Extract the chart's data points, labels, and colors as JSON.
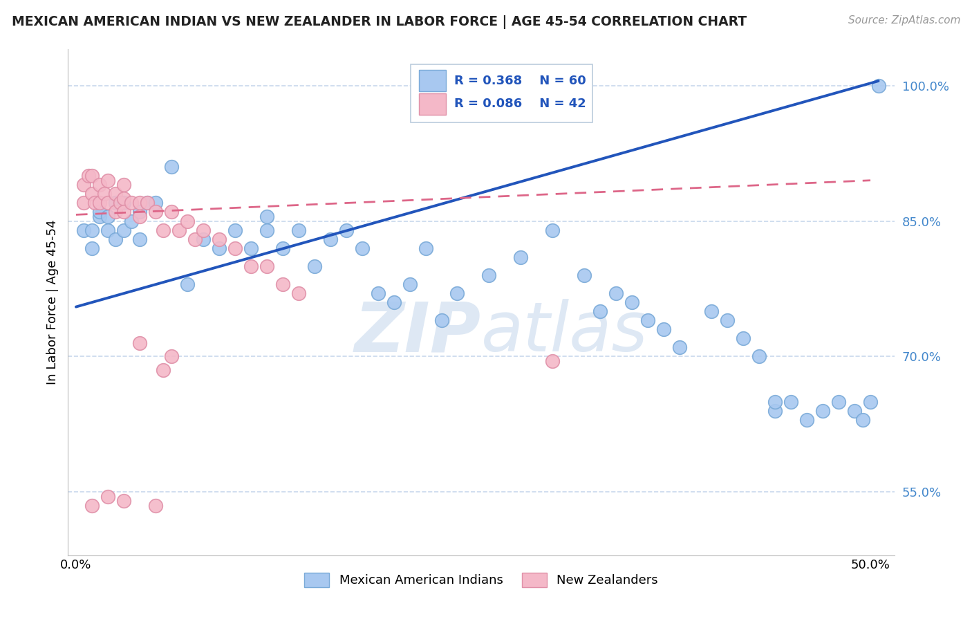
{
  "title": "MEXICAN AMERICAN INDIAN VS NEW ZEALANDER IN LABOR FORCE | AGE 45-54 CORRELATION CHART",
  "source": "Source: ZipAtlas.com",
  "ylabel": "In Labor Force | Age 45-54",
  "xlim": [
    -0.005,
    0.515
  ],
  "ylim": [
    0.48,
    1.04
  ],
  "xticks": [
    0.0,
    0.5
  ],
  "xticklabels": [
    "0.0%",
    "50.0%"
  ],
  "ytick_positions": [
    0.55,
    0.7,
    0.85,
    1.0
  ],
  "ytick_labels": [
    "55.0%",
    "70.0%",
    "85.0%",
    "100.0%"
  ],
  "blue_color": "#a8c8f0",
  "blue_edge_color": "#7aaad8",
  "pink_color": "#f4b8c8",
  "pink_edge_color": "#e090a8",
  "blue_line_color": "#2255bb",
  "pink_line_color": "#dd6688",
  "grid_color": "#c8d8ec",
  "watermark_color": "#d0dff0",
  "blue_scatter_x": [
    0.005,
    0.01,
    0.01,
    0.015,
    0.015,
    0.02,
    0.02,
    0.025,
    0.025,
    0.03,
    0.03,
    0.035,
    0.04,
    0.04,
    0.045,
    0.05,
    0.06,
    0.07,
    0.08,
    0.09,
    0.1,
    0.11,
    0.12,
    0.12,
    0.13,
    0.14,
    0.15,
    0.16,
    0.17,
    0.18,
    0.19,
    0.2,
    0.21,
    0.22,
    0.23,
    0.24,
    0.26,
    0.28,
    0.3,
    0.32,
    0.33,
    0.34,
    0.35,
    0.36,
    0.37,
    0.38,
    0.4,
    0.41,
    0.42,
    0.43,
    0.44,
    0.44,
    0.45,
    0.46,
    0.47,
    0.48,
    0.49,
    0.495,
    0.5,
    0.505
  ],
  "blue_scatter_y": [
    0.84,
    0.84,
    0.82,
    0.855,
    0.86,
    0.855,
    0.84,
    0.87,
    0.83,
    0.87,
    0.84,
    0.85,
    0.86,
    0.83,
    0.87,
    0.87,
    0.91,
    0.78,
    0.83,
    0.82,
    0.84,
    0.82,
    0.855,
    0.84,
    0.82,
    0.84,
    0.8,
    0.83,
    0.84,
    0.82,
    0.77,
    0.76,
    0.78,
    0.82,
    0.74,
    0.77,
    0.79,
    0.81,
    0.84,
    0.79,
    0.75,
    0.77,
    0.76,
    0.74,
    0.73,
    0.71,
    0.75,
    0.74,
    0.72,
    0.7,
    0.64,
    0.65,
    0.65,
    0.63,
    0.64,
    0.65,
    0.64,
    0.63,
    0.65,
    1.0
  ],
  "pink_scatter_x": [
    0.005,
    0.005,
    0.008,
    0.01,
    0.01,
    0.012,
    0.015,
    0.015,
    0.018,
    0.02,
    0.02,
    0.025,
    0.025,
    0.028,
    0.03,
    0.03,
    0.03,
    0.035,
    0.04,
    0.04,
    0.045,
    0.05,
    0.055,
    0.06,
    0.065,
    0.07,
    0.075,
    0.08,
    0.09,
    0.1,
    0.11,
    0.12,
    0.13,
    0.14,
    0.04,
    0.055,
    0.06,
    0.3,
    0.01,
    0.02,
    0.03,
    0.05
  ],
  "pink_scatter_y": [
    0.89,
    0.87,
    0.9,
    0.9,
    0.88,
    0.87,
    0.89,
    0.87,
    0.88,
    0.895,
    0.87,
    0.88,
    0.86,
    0.87,
    0.89,
    0.875,
    0.86,
    0.87,
    0.87,
    0.855,
    0.87,
    0.86,
    0.84,
    0.86,
    0.84,
    0.85,
    0.83,
    0.84,
    0.83,
    0.82,
    0.8,
    0.8,
    0.78,
    0.77,
    0.715,
    0.685,
    0.7,
    0.695,
    0.535,
    0.545,
    0.54,
    0.535
  ],
  "blue_line_x0": 0.0,
  "blue_line_y0": 0.755,
  "blue_line_x1": 0.505,
  "blue_line_y1": 1.005,
  "pink_line_x0": 0.0,
  "pink_line_y0": 0.857,
  "pink_line_x1": 0.5,
  "pink_line_y1": 0.895
}
